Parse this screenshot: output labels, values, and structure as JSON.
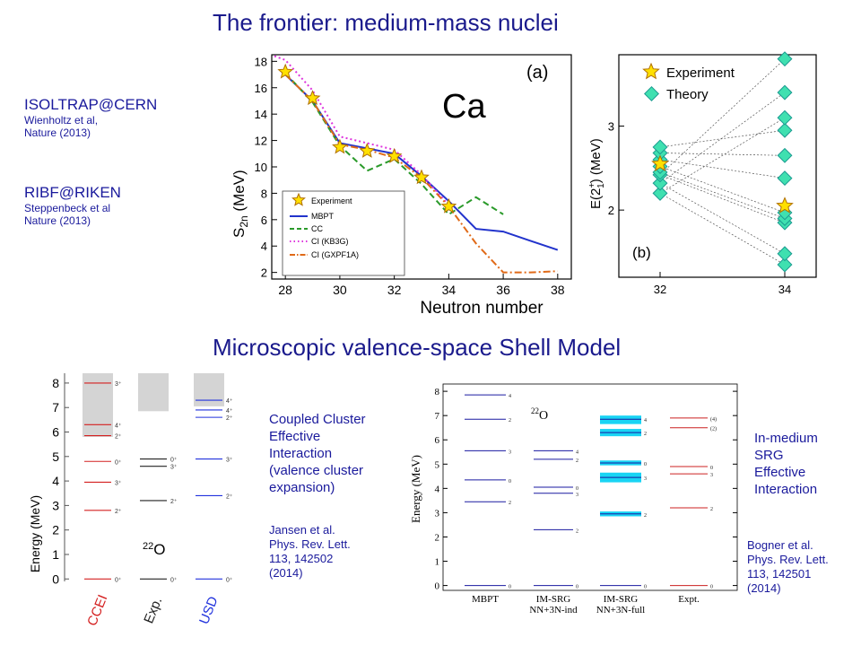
{
  "titles": {
    "top": "The frontier: medium-mass nuclei",
    "bottom": "Microscopic valence-space Shell Model"
  },
  "refs": {
    "isoltrap": {
      "head": "ISOLTRAP@CERN",
      "line1": "Wienholtz et al,",
      "line2": "Nature (2013)"
    },
    "ribf": {
      "head": "RIBF@RIKEN",
      "line1": "Steppenbeck et al",
      "line2": "Nature (2013)"
    }
  },
  "panel_a": {
    "label": "(a)",
    "element": "Ca",
    "ylabel_main": "S",
    "ylabel_sub": "2n",
    "ylabel_unit": " (MeV)",
    "xlabel": "Neutron number",
    "legend": [
      "Experiment",
      "MBPT",
      "CC",
      "CI (KB3G)",
      "CI (GXPF1A)"
    ],
    "colors": {
      "mbpt": "#2233cc",
      "cc": "#2a9a2a",
      "kb3g": "#dd33dd",
      "gxpf1a": "#e06a18",
      "star": "#ffe000"
    }
  },
  "panel_b": {
    "label": "(b)",
    "ylabel": "E(2",
    "ylabel_sup": "+",
    "ylabel_sub": "1",
    "ylabel_unit": ") (MeV)",
    "legend": [
      "Experiment",
      "Theory"
    ]
  },
  "chart_data": [
    {
      "type": "line",
      "title": "",
      "xlabel": "Neutron number",
      "ylabel": "S2n (MeV)",
      "xlim": [
        27.5,
        38.5
      ],
      "ylim": [
        1.5,
        18.5
      ],
      "xticks": [
        28,
        30,
        32,
        34,
        36,
        38
      ],
      "yticks": [
        2,
        4,
        6,
        8,
        10,
        12,
        14,
        16,
        18
      ],
      "series": [
        {
          "name": "Experiment",
          "x": [
            28,
            29,
            30,
            31,
            32,
            33,
            34
          ],
          "y": [
            17.2,
            15.2,
            11.5,
            11.2,
            10.8,
            9.2,
            7.0
          ]
        },
        {
          "name": "MBPT",
          "x": [
            28,
            29,
            30,
            31,
            32,
            33,
            34,
            35,
            36,
            37,
            38
          ],
          "y": [
            17.0,
            15.0,
            11.8,
            11.4,
            11.0,
            9.3,
            7.4,
            5.3,
            5.1,
            4.4,
            3.7
          ]
        },
        {
          "name": "CC",
          "x": [
            28,
            29,
            30,
            31,
            32,
            33,
            34,
            35,
            36
          ],
          "y": [
            17.1,
            14.9,
            11.6,
            9.7,
            10.6,
            8.7,
            6.4,
            7.7,
            6.4
          ]
        },
        {
          "name": "CI (KB3G)",
          "x": [
            27.6,
            28,
            29,
            30,
            31,
            32,
            33,
            34
          ],
          "y": [
            18.4,
            18.1,
            15.8,
            12.3,
            11.8,
            11.3,
            9.4,
            7.1
          ]
        },
        {
          "name": "CI (GXPF1A)",
          "x": [
            28,
            29,
            30,
            31,
            32,
            33,
            34,
            35,
            36,
            37,
            38
          ],
          "y": [
            17.0,
            15.0,
            11.7,
            11.3,
            10.7,
            9.2,
            7.0,
            4.2,
            2.0,
            2.0,
            2.1
          ]
        }
      ]
    },
    {
      "type": "scatter",
      "title": "",
      "xlabel": "",
      "ylabel": "E(2+1) (MeV)",
      "xticks": [
        32,
        34
      ],
      "yticks": [
        2,
        3
      ],
      "ylim": [
        1.2,
        3.85
      ],
      "series": [
        {
          "name": "Experiment",
          "x": [
            32,
            34
          ],
          "y": [
            2.55,
            2.05
          ]
        },
        {
          "name": "Theory",
          "x32": [
            2.2,
            2.32,
            2.42,
            2.45,
            2.52,
            2.6,
            2.68,
            2.75
          ],
          "x34": [
            1.35,
            1.48,
            1.85,
            1.9,
            1.97,
            2.38,
            2.65,
            2.95,
            3.1,
            3.4,
            3.8
          ]
        }
      ]
    },
    {
      "type": "table",
      "title": "",
      "ylabel": "Energy (MeV)",
      "ylim": [
        -0.1,
        8.4
      ],
      "yticks": [
        0,
        1,
        2,
        3,
        4,
        5,
        6,
        7,
        8
      ],
      "nucleus": "22O",
      "nucleus_mass": "22",
      "nucleus_sym": "O",
      "columns": [
        {
          "name": "CCEI",
          "color": "#d42020",
          "levels": [
            {
              "e": 0,
              "l": "0⁺"
            },
            {
              "e": 2.8,
              "l": "2⁺"
            },
            {
              "e": 3.95,
              "l": "3⁺"
            },
            {
              "e": 4.8,
              "l": "0⁺"
            },
            {
              "e": 5.85,
              "l": "2⁺"
            },
            {
              "e": 6.3,
              "l": "4⁺"
            },
            {
              "e": 8.0,
              "l": "3⁺"
            }
          ]
        },
        {
          "name": "Exp.",
          "color": "#222222",
          "levels": [
            {
              "e": 0,
              "l": "0⁺"
            },
            {
              "e": 3.2,
              "l": "2⁺"
            },
            {
              "e": 4.6,
              "l": "3⁺"
            },
            {
              "e": 4.9,
              "l": "0⁺"
            }
          ]
        },
        {
          "name": "USD",
          "color": "#2233dd",
          "levels": [
            {
              "e": 0,
              "l": "0⁺"
            },
            {
              "e": 3.4,
              "l": "2⁺"
            },
            {
              "e": 4.9,
              "l": "3⁺"
            },
            {
              "e": 6.6,
              "l": "2⁺"
            },
            {
              "e": 6.9,
              "l": "4⁺"
            },
            {
              "e": 7.3,
              "l": "4⁺"
            }
          ]
        }
      ]
    },
    {
      "type": "table",
      "title": "",
      "ylabel": "Energy (MeV)",
      "ylim": [
        -0.2,
        8.3
      ],
      "yticks": [
        0,
        1,
        2,
        3,
        4,
        5,
        6,
        7,
        8
      ],
      "nucleus": "22O",
      "nucleus_mass": "22",
      "nucleus_sym": "O",
      "columns": [
        {
          "name": "MBPT",
          "color": "#1a1aa0",
          "levels": [
            {
              "e": 0,
              "l": "0"
            },
            {
              "e": 3.45,
              "l": "2"
            },
            {
              "e": 4.35,
              "l": "0"
            },
            {
              "e": 5.55,
              "l": "3"
            },
            {
              "e": 6.85,
              "l": "2"
            },
            {
              "e": 7.85,
              "l": "4"
            }
          ]
        },
        {
          "name": "IM-SRG NN+3N-ind",
          "color": "#1a1aa0",
          "levels": [
            {
              "e": 0,
              "l": "0"
            },
            {
              "e": 2.3,
              "l": "2"
            },
            {
              "e": 3.8,
              "l": "3"
            },
            {
              "e": 4.05,
              "l": "0"
            },
            {
              "e": 5.2,
              "l": "2"
            },
            {
              "e": 5.55,
              "l": "4"
            }
          ]
        },
        {
          "name": "IM-SRG NN+3N-full",
          "color": "#1a1aa0",
          "levels": [
            {
              "e": 0,
              "l": "0"
            },
            {
              "e": 2.95,
              "l": "2"
            },
            {
              "e": 4.45,
              "l": "3"
            },
            {
              "e": 5.05,
              "l": "0"
            },
            {
              "e": 6.3,
              "l": "2"
            },
            {
              "e": 6.85,
              "l": "4"
            }
          ]
        },
        {
          "name": "Expt.",
          "color": "#cc2020",
          "levels": [
            {
              "e": 0,
              "l": "0"
            },
            {
              "e": 3.2,
              "l": "2"
            },
            {
              "e": 4.6,
              "l": "3"
            },
            {
              "e": 4.9,
              "l": "0"
            },
            {
              "e": 6.5,
              "l": "(2)"
            },
            {
              "e": 6.9,
              "l": "(4)"
            }
          ]
        }
      ]
    }
  ],
  "cc_text": {
    "lines": [
      "Coupled Cluster",
      "Effective",
      "Interaction",
      "(valence cluster",
      "expansion)"
    ],
    "ref": [
      "Jansen et al.",
      "Phys. Rev. Lett.",
      "113, 142502",
      "(2014)"
    ]
  },
  "srg_text": {
    "lines": [
      "In-medium",
      "SRG",
      "Effective",
      "Interaction"
    ],
    "ref": [
      "Bogner et al.",
      "Phys. Rev. Lett.",
      "113, 142501",
      "(2014)"
    ]
  },
  "panel_d_xlabels": [
    [
      "MBPT"
    ],
    [
      "IM-SRG",
      "NN+3N-ind"
    ],
    [
      "IM-SRG",
      "NN+3N-full"
    ],
    [
      "Expt."
    ]
  ]
}
